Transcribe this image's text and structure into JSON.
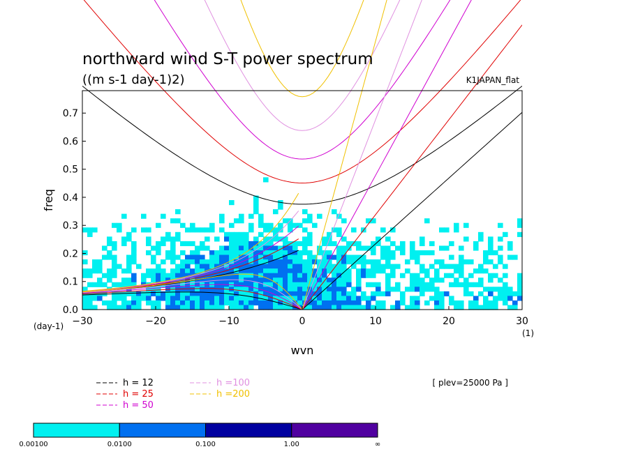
{
  "chart_data": {
    "type": "heatmap",
    "title": "northward wind S-T power spectrum",
    "subtitle": "((m s-1 day-1)2)",
    "source_label": "K1JAPAN_flat",
    "level_label": "[ plev=25000 Pa ]",
    "xlabel": "wvn",
    "ylabel": "freq",
    "x_unit_label": "(1)",
    "y_unit_label": "(day-1)",
    "xlim": [
      -30,
      30
    ],
    "ylim": [
      0,
      0.78
    ],
    "x_ticks": [
      -30,
      -20,
      -10,
      0,
      10,
      20,
      30
    ],
    "y_ticks": [
      0.0,
      0.1,
      0.2,
      0.3,
      0.4,
      0.5,
      0.6,
      0.7
    ],
    "x_tick_labels": [
      "−30",
      "−20",
      "−10",
      "0",
      "10",
      "20",
      "30"
    ],
    "y_tick_labels": [
      "0.0",
      "0.1",
      "0.2",
      "0.3",
      "0.4",
      "0.5",
      "0.6",
      "0.7"
    ],
    "shading_levels": [
      "0.00100",
      "0.0100",
      "0.100",
      "1.00",
      "∞"
    ],
    "shading_colors": [
      "#00f0f0",
      "#0070f0",
      "#0000a0",
      "#5000a0"
    ],
    "dispersion_curves": [
      {
        "h": 12,
        "label": "h = 12",
        "color": "#000000"
      },
      {
        "h": 25,
        "label": "h = 25",
        "color": "#e00000"
      },
      {
        "h": 50,
        "label": "h = 50",
        "color": "#d000d0"
      },
      {
        "h": 100,
        "label": "h =100",
        "color": "#e090e0"
      },
      {
        "h": 200,
        "label": "h =200",
        "color": "#f0c000"
      }
    ]
  }
}
